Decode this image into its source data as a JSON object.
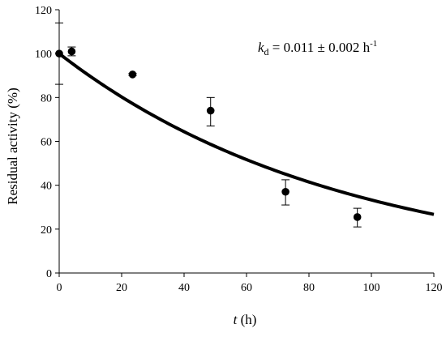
{
  "chart_data": {
    "type": "scatter",
    "title": "",
    "xlabel_italic": "t",
    "xlabel_rest": " (h)",
    "ylabel": "Residual activity (%)",
    "xlim": [
      0,
      120
    ],
    "ylim": [
      0,
      120
    ],
    "x_ticks": [
      0,
      20,
      40,
      60,
      80,
      100,
      120
    ],
    "y_ticks": [
      0,
      20,
      40,
      60,
      80,
      100,
      120
    ],
    "grid": false,
    "legend": "none",
    "series": [
      {
        "type": "scatter",
        "x": [
          0,
          4,
          23.5,
          48.5,
          72.5,
          95.5
        ],
        "y": [
          100,
          101,
          90.5,
          74,
          37,
          25.5
        ],
        "error_low": [
          14,
          2,
          0.5,
          7,
          6,
          4.5
        ],
        "error_high": [
          14,
          2,
          0.5,
          6,
          5.5,
          4
        ]
      },
      {
        "type": "line",
        "model": "exponential decay",
        "y0": 100,
        "k": 0.011,
        "x_range": [
          0,
          120
        ]
      }
    ],
    "annotation": {
      "k_symbol": "k",
      "k_subscript": "d",
      "text_main": " = 0.011 ± 0.002 h",
      "exponent": "-1"
    },
    "colors": {
      "markers": "#000000",
      "curve": "#000000",
      "axes": "#000000"
    }
  }
}
